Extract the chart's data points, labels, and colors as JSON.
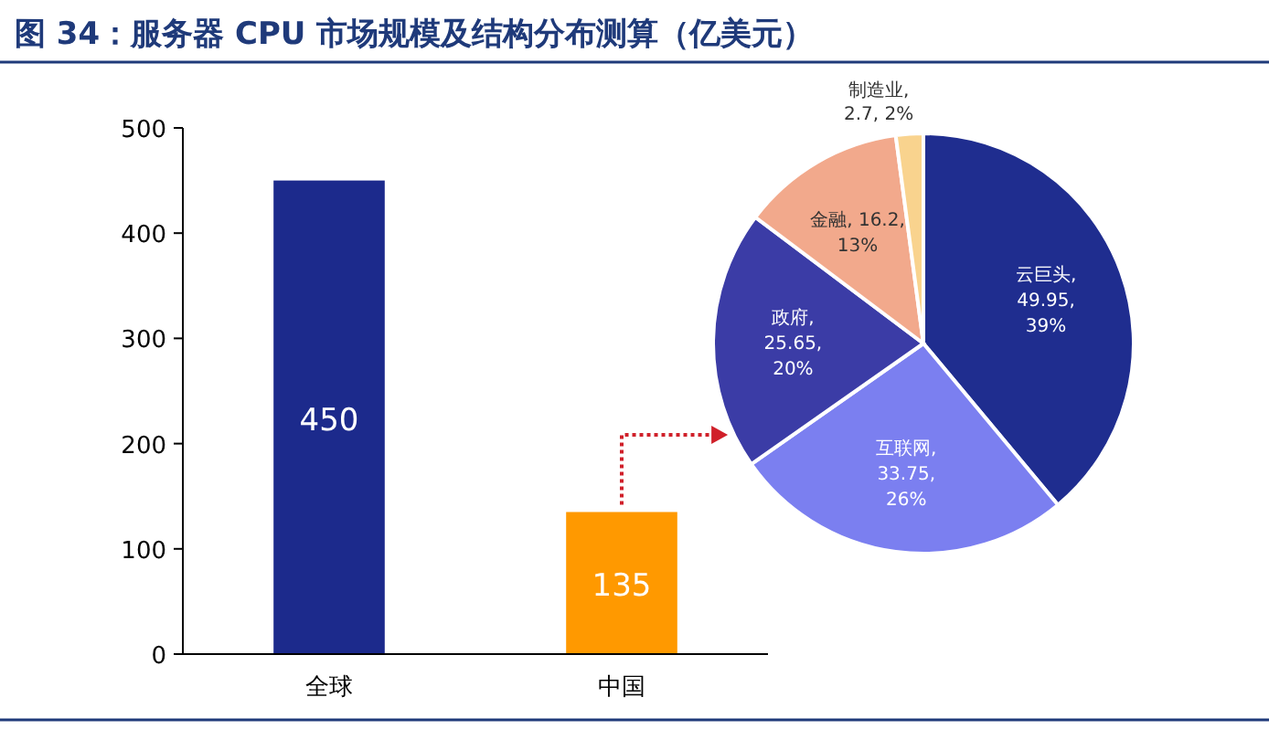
{
  "chart_data": [
    {
      "type": "bar",
      "title": "图 34：服务器 CPU 市场规模及结构分布测算（亿美元）",
      "categories": [
        "全球",
        "中国"
      ],
      "values": [
        450,
        135
      ],
      "colors": [
        "#1c2a8c",
        "#ff9900"
      ],
      "ylim": [
        0,
        500
      ],
      "yticks": [
        0,
        100,
        200,
        300,
        400,
        500
      ],
      "grid": false,
      "data_labels": true
    },
    {
      "type": "pie",
      "categories": [
        "云巨头",
        "互联网",
        "政府",
        "金融",
        "制造业"
      ],
      "values": [
        49.95,
        33.75,
        25.65,
        16.2,
        2.7
      ],
      "value_labels": [
        ",\n49.95,\n39%",
        ",\n33.75,\n26%",
        ",\n25.65,\n20%",
        ", 16.2,\n13%",
        ",\n2.7, 2%"
      ],
      "colors": [
        "#1f2d8f",
        "#7b7ff0",
        "#3b3ca6",
        "#f2a98c",
        "#f9d38e"
      ]
    }
  ]
}
